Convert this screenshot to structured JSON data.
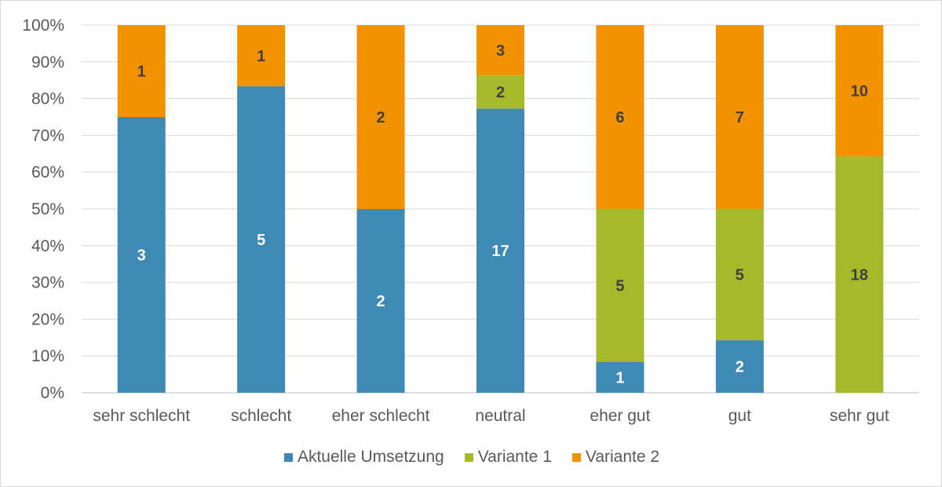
{
  "chart_data": {
    "type": "bar",
    "stacked": "percent",
    "title": "",
    "xlabel": "",
    "ylabel": "",
    "ylim": [
      0,
      100
    ],
    "yticks": [
      "0%",
      "10%",
      "20%",
      "30%",
      "40%",
      "50%",
      "60%",
      "70%",
      "80%",
      "90%",
      "100%"
    ],
    "categories": [
      "sehr schlecht",
      "schlecht",
      "eher schlecht",
      "neutral",
      "eher gut",
      "gut",
      "sehr gut"
    ],
    "series": [
      {
        "name": "Aktuelle Umsetzung",
        "color": "#3f89b5",
        "label_color": "#ffffff",
        "values": [
          3,
          5,
          2,
          17,
          1,
          2,
          0
        ]
      },
      {
        "name": "Variante 1",
        "color": "#a5b92a",
        "label_color": "#404040",
        "values": [
          0,
          0,
          0,
          2,
          5,
          5,
          18
        ]
      },
      {
        "name": "Variante 2",
        "color": "#f39200",
        "label_color": "#404040",
        "values": [
          1,
          1,
          2,
          3,
          6,
          7,
          10
        ]
      }
    ],
    "grid": true,
    "legend_position": "bottom"
  }
}
